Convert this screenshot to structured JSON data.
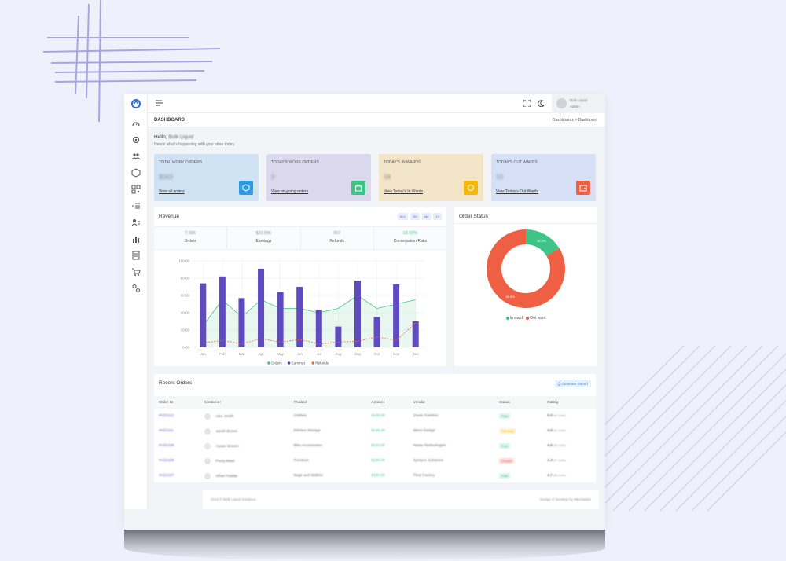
{
  "header": {
    "page_title": "DASHBOARD",
    "breadcrumb": "Dashboards  >  Dashboard",
    "user_name": "Bulk Liquid",
    "user_role": "Admin"
  },
  "greeting": {
    "hello": "Hello,",
    "name": "Bulk Liquid",
    "subtitle": "Here's what's happening with your store today."
  },
  "cards": [
    {
      "label": "TOTAL WORK ORDERS",
      "value": "$563",
      "link": "View all orders",
      "bg": "#cfe3f4",
      "icon_bg": "#2d9ae4",
      "icon": "cube-icon"
    },
    {
      "label": "TODAY'S WORK ORDERS",
      "value": "0",
      "link": "View on-going orders",
      "bg": "#dcd8ee",
      "icon_bg": "#3fc387",
      "icon": "bag-icon"
    },
    {
      "label": "TODAY'S IN WARDS",
      "value": "58",
      "link": "View Today's In Wards",
      "bg": "#f3e6c8",
      "icon_bg": "#f5b70a",
      "icon": "circle-dollar-icon"
    },
    {
      "label": "TODAY'S OUT WARDS",
      "value": "10",
      "link": "View Today's Out Wards",
      "bg": "#d6e0f6",
      "icon_bg": "#ef5f43",
      "icon": "wallet-icon"
    }
  ],
  "revenue": {
    "title": "Revenue",
    "buttons": [
      "ALL",
      "1M",
      "6M",
      "1Y"
    ],
    "stats": [
      {
        "value": "7,585",
        "label": "Orders"
      },
      {
        "value": "$22.89k",
        "label": "Earnings"
      },
      {
        "value": "367",
        "label": "Refunds"
      },
      {
        "value": "18.92%",
        "label": "Conversation Ratio"
      }
    ]
  },
  "chart_data": [
    {
      "type": "bar",
      "categories": [
        "Jan",
        "Feb",
        "Mar",
        "Apr",
        "May",
        "Jun",
        "Jul",
        "Aug",
        "Sep",
        "Oct",
        "Nov",
        "Dec"
      ],
      "y_ticks": [
        "0.00",
        "20.00",
        "40.00",
        "60.00",
        "80.00",
        "100.00"
      ],
      "ylim": [
        0,
        100
      ],
      "series": [
        {
          "name": "Orders",
          "type": "area",
          "color": "#3fc387",
          "values": [
            25,
            55,
            35,
            55,
            45,
            45,
            40,
            45,
            60,
            45,
            50,
            55
          ]
        },
        {
          "name": "Earnings",
          "type": "bar",
          "color": "#5f4bbf",
          "values": [
            74,
            82,
            57,
            91,
            64,
            70,
            43,
            24,
            77,
            35,
            73,
            30
          ]
        },
        {
          "name": "Refunds",
          "type": "line-dashed",
          "color": "#ef5f43",
          "values": [
            5,
            8,
            4,
            10,
            6,
            9,
            4,
            6,
            7,
            12,
            8,
            28
          ]
        }
      ],
      "grid": true,
      "legend": "bottom"
    },
    {
      "type": "pie",
      "title": "Order Status",
      "categories": [
        "In ward",
        "Out ward"
      ],
      "values": [
        16.2,
        83.8
      ],
      "value_labels": [
        "16.2%",
        "83.8%"
      ],
      "colors": [
        "#3fc387",
        "#ef5f43"
      ],
      "donut": true,
      "legend": "bottom"
    }
  ],
  "orders": {
    "title": "Recent Orders",
    "button": "Generate Report",
    "columns": [
      "Order ID",
      "Customer",
      "Product",
      "Amount",
      "Vendor",
      "Status",
      "Rating"
    ],
    "rows": [
      {
        "id": "#VZ2112",
        "customer": "Alex Smith",
        "product": "Clothes",
        "amount": "$109.00",
        "vendor": "Zoetic Fashion",
        "status": "Paid",
        "status_color": "#3fc387",
        "status_bg": "#dcf5e8",
        "rating": "5.0",
        "votes": "(61 votes)"
      },
      {
        "id": "#VZ2111",
        "customer": "Jansh Brown",
        "product": "Kitchen Storage",
        "amount": "$149.00",
        "vendor": "Micro Design",
        "status": "Pending",
        "status_color": "#f5b70a",
        "status_bg": "#fdf1d2",
        "rating": "4.5",
        "votes": "(61 votes)"
      },
      {
        "id": "#VZ2109",
        "customer": "Ayaan Bowen",
        "product": "Bike Accessories",
        "amount": "$215.00",
        "vendor": "Nesta Technologies",
        "status": "Paid",
        "status_color": "#3fc387",
        "status_bg": "#dcf5e8",
        "rating": "4.9",
        "votes": "(89 votes)"
      },
      {
        "id": "#VZ2108",
        "customer": "Prezy Mark",
        "product": "Furniture",
        "amount": "$199.00",
        "vendor": "Syntyce Solutions",
        "status": "Unpaid",
        "status_color": "#ef5f43",
        "status_bg": "#fcdcd6",
        "rating": "4.3",
        "votes": "(47 votes)"
      },
      {
        "id": "#VZ2107",
        "customer": "Vihan Hudda",
        "product": "Bags and Wallets",
        "amount": "$330.00",
        "vendor": "Flexi Factory",
        "status": "Paid",
        "status_color": "#3fc387",
        "status_bg": "#dcf5e8",
        "rating": "4.7",
        "votes": "(58 votes)"
      }
    ]
  },
  "footer": {
    "left": "2024 © Bulk Liquid Solutions",
    "right": "Design & Develop by Mechalabs"
  }
}
